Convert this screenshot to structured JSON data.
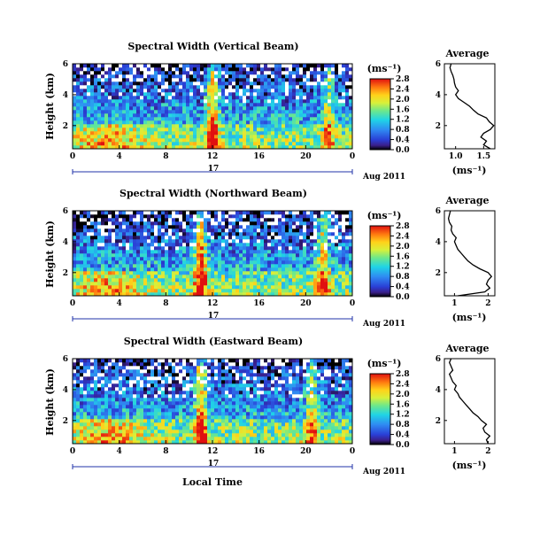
{
  "chart_data": [
    {
      "type": "heatmap",
      "title": "Spectral Width (Vertical Beam)",
      "ylabel": "Height (km)",
      "xlabel": "",
      "x_ticks": [
        "0",
        "4",
        "8",
        "12",
        "16",
        "20",
        "0"
      ],
      "y_ticks": [
        "2",
        "4",
        "6"
      ],
      "xlim": [
        0,
        24
      ],
      "ylim": [
        0.5,
        6
      ],
      "date_label": "17",
      "date_suffix": "Aug 2011",
      "colorbar": {
        "unit": "(ms⁻¹)",
        "ticks": [
          "0.0",
          "0.4",
          "0.8",
          "1.2",
          "1.6",
          "2.0",
          "2.4",
          "2.8"
        ],
        "range": [
          0,
          2.8
        ]
      },
      "bursts": [
        {
          "hour": 12,
          "strength": 1.0
        },
        {
          "hour": 22,
          "strength": 0.6
        }
      ],
      "average": {
        "title": "Average",
        "xlabel": "(ms⁻¹)",
        "x_ticks": [
          "1.0",
          "1.5"
        ],
        "xlim": [
          0.8,
          1.7
        ],
        "heights": [
          0.5,
          0.75,
          1.0,
          1.25,
          1.5,
          1.75,
          2.0,
          2.25,
          2.5,
          2.75,
          3.0,
          3.25,
          3.5,
          3.75,
          4.0,
          4.25,
          4.5,
          4.75,
          5.0,
          5.25,
          5.5,
          5.75,
          6.0
        ],
        "values": [
          1.62,
          1.5,
          1.55,
          1.45,
          1.5,
          1.62,
          1.68,
          1.6,
          1.55,
          1.4,
          1.32,
          1.25,
          1.15,
          1.05,
          1.0,
          1.05,
          1.0,
          0.98,
          0.97,
          0.95,
          0.92,
          0.9,
          0.92
        ]
      }
    },
    {
      "type": "heatmap",
      "title": "Spectral Width (Northward Beam)",
      "ylabel": "Height (km)",
      "xlabel": "",
      "x_ticks": [
        "0",
        "4",
        "8",
        "12",
        "16",
        "20",
        "0"
      ],
      "y_ticks": [
        "2",
        "4",
        "6"
      ],
      "xlim": [
        0,
        24
      ],
      "ylim": [
        0.5,
        6
      ],
      "date_label": "17",
      "date_suffix": "Aug 2011",
      "colorbar": {
        "unit": "(ms⁻¹)",
        "ticks": [
          "0.0",
          "0.4",
          "0.8",
          "1.2",
          "1.6",
          "2.0",
          "2.4",
          "2.8"
        ],
        "range": [
          0,
          2.8
        ]
      },
      "bursts": [
        {
          "hour": 11,
          "strength": 1.0
        },
        {
          "hour": 21.5,
          "strength": 0.8
        }
      ],
      "average": {
        "title": "Average",
        "xlabel": "(ms⁻¹)",
        "x_ticks": [
          "1",
          "2"
        ],
        "xlim": [
          0.7,
          2.2
        ],
        "heights": [
          0.5,
          0.75,
          1.0,
          1.25,
          1.5,
          1.75,
          2.0,
          2.25,
          2.5,
          2.75,
          3.0,
          3.25,
          3.5,
          3.75,
          4.0,
          4.25,
          4.5,
          4.75,
          5.0,
          5.25,
          5.5,
          5.75,
          6.0
        ],
        "values": [
          1.1,
          1.9,
          2.05,
          1.95,
          2.0,
          2.1,
          2.0,
          1.75,
          1.55,
          1.4,
          1.3,
          1.2,
          1.1,
          1.05,
          1.0,
          1.05,
          0.95,
          0.9,
          0.92,
          0.85,
          0.82,
          0.85,
          0.88
        ]
      }
    },
    {
      "type": "heatmap",
      "title": "Spectral Width (Eastward Beam)",
      "ylabel": "Height (km)",
      "xlabel": "Local Time",
      "x_ticks": [
        "0",
        "4",
        "8",
        "12",
        "16",
        "20",
        "0"
      ],
      "y_ticks": [
        "2",
        "4",
        "6"
      ],
      "xlim": [
        0,
        24
      ],
      "ylim": [
        0.5,
        6
      ],
      "date_label": "17",
      "date_suffix": "Aug 2011",
      "colorbar": {
        "unit": "(ms⁻¹)",
        "ticks": [
          "0.0",
          "0.4",
          "0.8",
          "1.2",
          "1.6",
          "2.0",
          "2.4",
          "2.8"
        ],
        "range": [
          0,
          2.8
        ]
      },
      "bursts": [
        {
          "hour": 11,
          "strength": 1.0
        },
        {
          "hour": 20.5,
          "strength": 0.7
        }
      ],
      "average": {
        "title": "Average",
        "xlabel": "(ms⁻¹)",
        "x_ticks": [
          "1",
          "2"
        ],
        "xlim": [
          0.7,
          2.2
        ],
        "heights": [
          0.5,
          0.75,
          1.0,
          1.25,
          1.5,
          1.75,
          2.0,
          2.25,
          2.5,
          2.75,
          3.0,
          3.25,
          3.5,
          3.75,
          4.0,
          4.25,
          4.5,
          4.75,
          5.0,
          5.25,
          5.5,
          5.75,
          6.0
        ],
        "values": [
          2.0,
          1.95,
          2.05,
          1.9,
          1.85,
          1.95,
          1.8,
          1.7,
          1.55,
          1.45,
          1.35,
          1.25,
          1.15,
          1.1,
          1.0,
          1.05,
          0.95,
          0.9,
          0.85,
          0.95,
          0.9,
          0.85,
          0.9
        ]
      }
    }
  ]
}
